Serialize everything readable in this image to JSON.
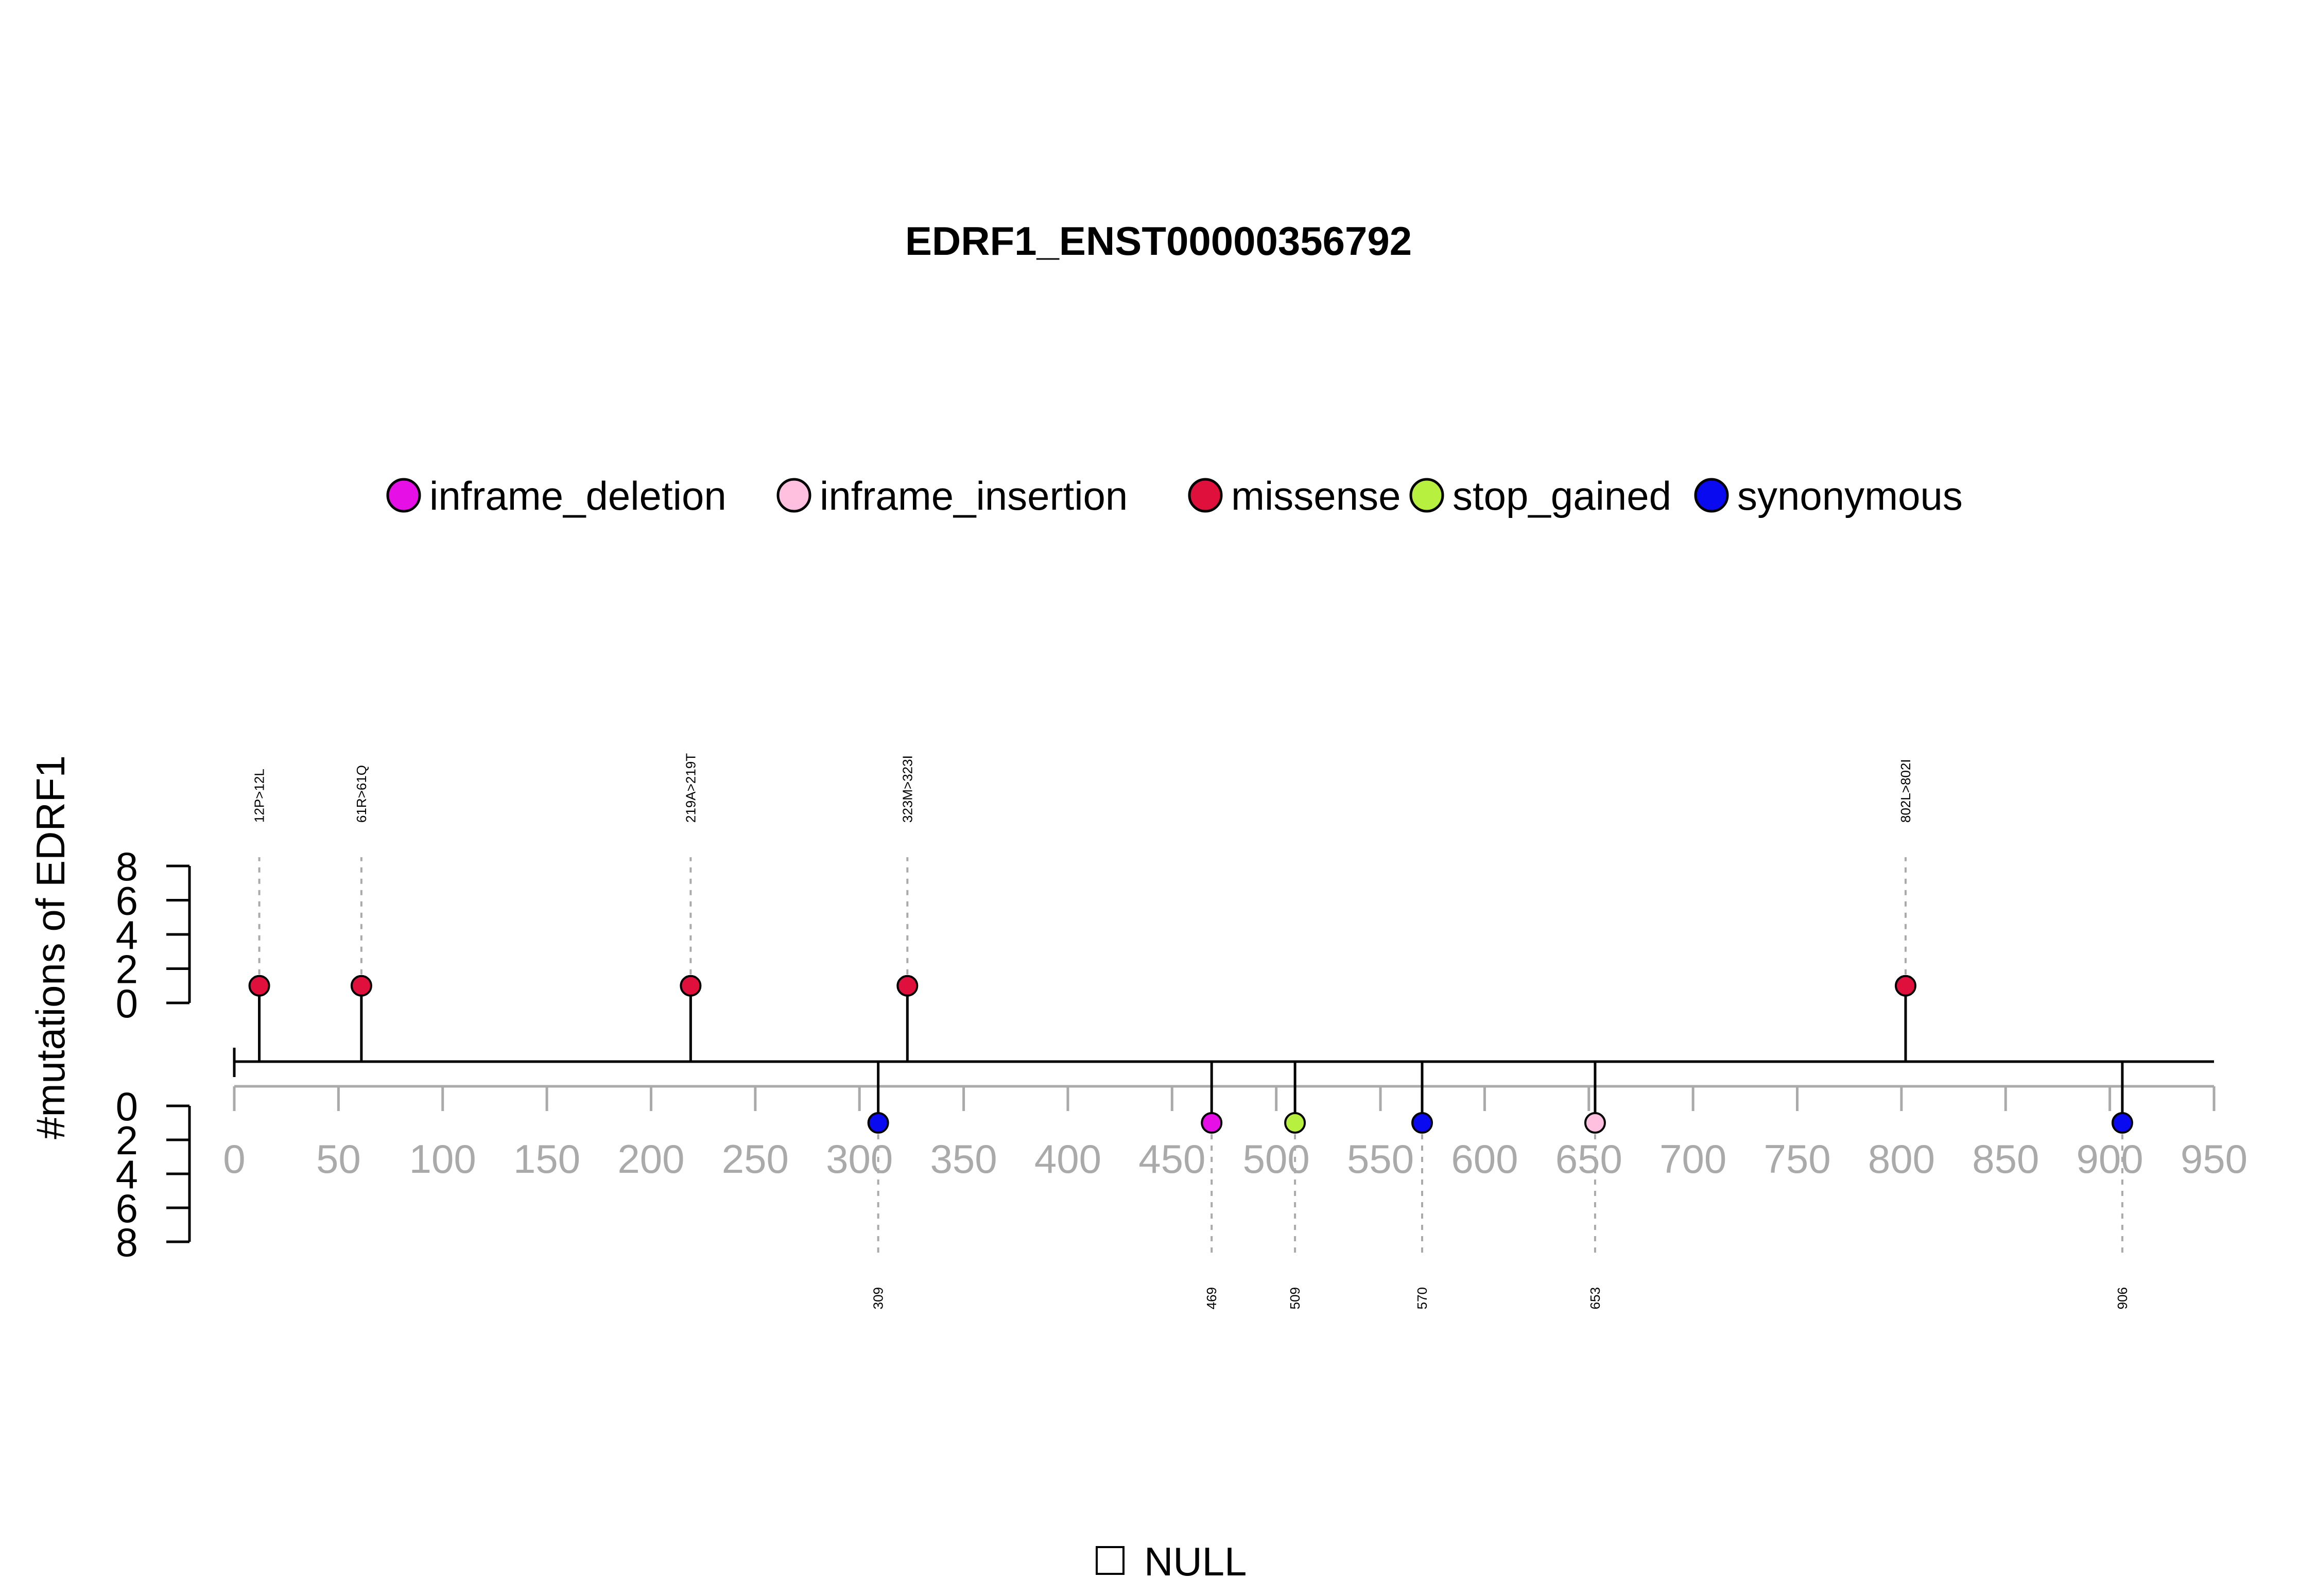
{
  "chart_data": {
    "type": "lollipop",
    "title": "EDRF1_ENST00000356792",
    "ylabel": "#mutations of EDRF1",
    "xlim": [
      0,
      950
    ],
    "x_ticks": [
      "0",
      "50",
      "100",
      "150",
      "200",
      "250",
      "300",
      "350",
      "400",
      "450",
      "500",
      "550",
      "600",
      "650",
      "700",
      "750",
      "800",
      "850",
      "900",
      "950"
    ],
    "ylim_top": [
      0,
      8
    ],
    "ylim_bottom": [
      0,
      8
    ],
    "y_ticks_top": [
      "0",
      "2",
      "4",
      "6",
      "8"
    ],
    "y_ticks_bottom": [
      "0",
      "2",
      "4",
      "6",
      "8"
    ],
    "legend_position": "top",
    "legend": [
      {
        "name": "inframe_deletion",
        "color": "#e60fe6"
      },
      {
        "name": "inframe_insertion",
        "color": "#ffc0e0"
      },
      {
        "name": "missense",
        "color": "#e0103c"
      },
      {
        "name": "stop_gained",
        "color": "#b8f040"
      },
      {
        "name": "synonymous",
        "color": "#0a0af0"
      }
    ],
    "domains_legend": [
      "NULL"
    ],
    "mutations_top": [
      {
        "pos": 12,
        "count": 1,
        "type": "missense",
        "label": "12P>12L"
      },
      {
        "pos": 61,
        "count": 1,
        "type": "missense",
        "label": "61R>61Q"
      },
      {
        "pos": 219,
        "count": 1,
        "type": "missense",
        "label": "219A>219T"
      },
      {
        "pos": 323,
        "count": 1,
        "type": "missense",
        "label": "323M>323I"
      },
      {
        "pos": 802,
        "count": 1,
        "type": "missense",
        "label": "802L>802I"
      }
    ],
    "mutations_bottom": [
      {
        "pos": 309,
        "count": 1,
        "type": "synonymous",
        "label": "309"
      },
      {
        "pos": 469,
        "count": 1,
        "type": "inframe_deletion",
        "label": "469"
      },
      {
        "pos": 509,
        "count": 1,
        "type": "stop_gained",
        "label": "509"
      },
      {
        "pos": 570,
        "count": 1,
        "type": "synonymous",
        "label": "570"
      },
      {
        "pos": 653,
        "count": 1,
        "type": "inframe_insertion",
        "label": "653"
      },
      {
        "pos": 906,
        "count": 1,
        "type": "synonymous",
        "label": "906"
      }
    ]
  }
}
